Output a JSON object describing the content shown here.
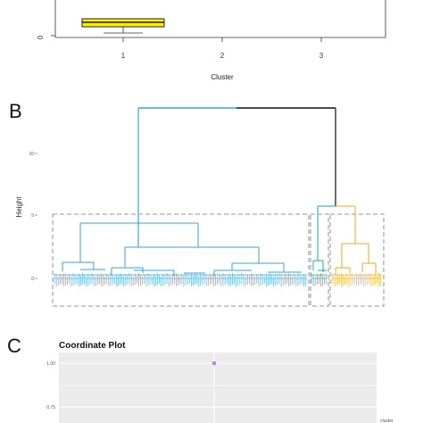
{
  "panels": {
    "b_label": "B",
    "c_label": "C"
  },
  "chart_data": [
    {
      "type": "box",
      "categories": [
        "1",
        "2",
        "3"
      ],
      "x_ticks": [
        "1",
        "2",
        "3"
      ],
      "y_ticks": [
        "0"
      ],
      "xlabel": "Cluster",
      "ylabel": "",
      "box_color": "#ffee00",
      "boxes": [
        {
          "category": "1",
          "whisker_low": 0.3,
          "q1": 1.0,
          "median": 1.5,
          "q3": 1.9
        }
      ]
    },
    {
      "type": "dendrogram",
      "ylabel": "Height",
      "y_ticks": [
        "0",
        "5",
        "10"
      ],
      "ylim": [
        -1,
        15
      ],
      "clusters": [
        {
          "name": "1",
          "color": "#3aa3d8"
        },
        {
          "name": "2",
          "color": "#1aa8a8"
        },
        {
          "name": "3",
          "color": "#e8a91d"
        }
      ],
      "merges": [
        {
          "cluster": "1",
          "height": 4.8
        },
        {
          "cluster": "1",
          "height": 3.3
        },
        {
          "cluster": "1",
          "height": 1.5
        },
        {
          "cluster": "1",
          "height": 1.4
        },
        {
          "cluster": "1",
          "height": 0.7
        },
        {
          "cluster": "2",
          "height": 1.7
        },
        {
          "cluster": "3",
          "height": 2.6
        },
        {
          "cluster": "3",
          "height": 1.5
        },
        {
          "cluster": "2+3",
          "height": 6.6
        },
        {
          "cluster": "1+2",
          "height": 14.1
        },
        {
          "cluster": "root",
          "height": 14.1
        }
      ]
    },
    {
      "type": "scatter",
      "title": "Coordinate Plot",
      "y_ticks": [
        "1.00",
        "0.75"
      ],
      "points": [
        {
          "y": 1.0,
          "color": "#c77cff"
        }
      ],
      "legend_title": "cluster",
      "colors": {
        "panel_bg": "#ebebeb",
        "grid": "#ffffff"
      }
    }
  ]
}
